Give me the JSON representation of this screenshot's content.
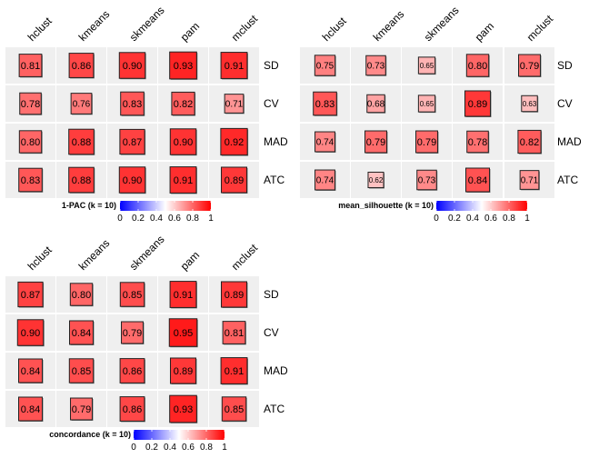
{
  "chart_data": [
    {
      "type": "heatmap",
      "legend_title": "1-PAC (k = 10)",
      "columns": [
        "hclust",
        "kmeans",
        "skmeans",
        "pam",
        "mclust"
      ],
      "rows": [
        "SD",
        "CV",
        "MAD",
        "ATC"
      ],
      "values": [
        [
          0.81,
          0.86,
          0.9,
          0.93,
          0.91
        ],
        [
          0.78,
          0.76,
          0.83,
          0.82,
          0.71
        ],
        [
          0.8,
          0.88,
          0.87,
          0.9,
          0.92
        ],
        [
          0.83,
          0.88,
          0.9,
          0.91,
          0.89
        ]
      ],
      "labels": [
        [
          "0.81",
          "0.86",
          "0.90",
          "0.93",
          "0.91"
        ],
        [
          "0.78",
          "0.76",
          "0.83",
          "0.82",
          "0.71"
        ],
        [
          "0.80",
          "0.88",
          "0.87",
          "0.90",
          "0.92"
        ],
        [
          "0.83",
          "0.88",
          "0.90",
          "0.91",
          "0.89"
        ]
      ],
      "color_range": [
        0,
        1
      ],
      "legend_ticks": [
        "0",
        "0.2",
        "0.4",
        "0.6",
        "0.8",
        "1"
      ]
    },
    {
      "type": "heatmap",
      "legend_title": "mean_silhouette (k = 10)",
      "columns": [
        "hclust",
        "kmeans",
        "skmeans",
        "pam",
        "mclust"
      ],
      "rows": [
        "SD",
        "CV",
        "MAD",
        "ATC"
      ],
      "values": [
        [
          0.75,
          0.73,
          0.65,
          0.8,
          0.79
        ],
        [
          0.83,
          0.68,
          0.65,
          0.89,
          0.63
        ],
        [
          0.74,
          0.79,
          0.79,
          0.78,
          0.82
        ],
        [
          0.74,
          0.62,
          0.73,
          0.84,
          0.71
        ]
      ],
      "labels": [
        [
          "0.75",
          "0.73",
          "0.65",
          "0.80",
          "0.79"
        ],
        [
          "0.83",
          "0.68",
          "0.65",
          "0.89",
          "0.63"
        ],
        [
          "0.74",
          "0.79",
          "0.79",
          "0.78",
          "0.82"
        ],
        [
          "0.74",
          "0.62",
          "0.73",
          "0.84",
          "0.71"
        ]
      ],
      "color_range": [
        0,
        1
      ],
      "legend_ticks": [
        "0",
        "0.2",
        "0.4",
        "0.6",
        "0.8",
        "1"
      ]
    },
    {
      "type": "heatmap",
      "legend_title": "concordance (k = 10)",
      "columns": [
        "hclust",
        "kmeans",
        "skmeans",
        "pam",
        "mclust"
      ],
      "rows": [
        "SD",
        "CV",
        "MAD",
        "ATC"
      ],
      "values": [
        [
          0.87,
          0.8,
          0.85,
          0.91,
          0.89
        ],
        [
          0.9,
          0.84,
          0.79,
          0.95,
          0.81
        ],
        [
          0.84,
          0.85,
          0.86,
          0.89,
          0.91
        ],
        [
          0.84,
          0.79,
          0.86,
          0.93,
          0.85
        ]
      ],
      "labels": [
        [
          "0.87",
          "0.80",
          "0.85",
          "0.91",
          "0.89"
        ],
        [
          "0.90",
          "0.84",
          "0.79",
          "0.95",
          "0.81"
        ],
        [
          "0.84",
          "0.85",
          "0.86",
          "0.89",
          "0.91"
        ],
        [
          "0.84",
          "0.79",
          "0.86",
          "0.93",
          "0.85"
        ]
      ],
      "color_range": [
        0,
        1
      ],
      "legend_ticks": [
        "0",
        "0.2",
        "0.4",
        "0.6",
        "0.8",
        "1"
      ]
    }
  ],
  "colors": {
    "low": "#0000ff",
    "mid": "#ffffff",
    "high": "#ff0000",
    "cell_background": "#efefef"
  }
}
